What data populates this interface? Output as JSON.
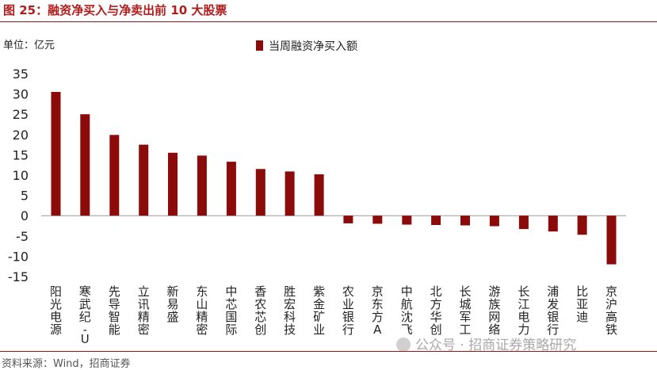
{
  "header": {
    "title": "图 25：融资净买入与净卖出前 10 大股票"
  },
  "unit_label": "单位：亿元",
  "footer": {
    "source": "资料来源：Wind，招商证券"
  },
  "watermark": {
    "text": "公众号 · 招商证券策略研究"
  },
  "colors": {
    "bar": "#8b0a0a",
    "title": "#b01c1c",
    "rule": "#8a1a1a"
  },
  "chart_data": {
    "type": "bar",
    "categories": [
      "阳光电源",
      "寒武纪-U",
      "先导智能",
      "立讯精密",
      "新易盛",
      "东山精密",
      "中芯国际",
      "香农芯创",
      "胜宏科技",
      "紫金矿业",
      "农业银行",
      "京东方A",
      "中航沈飞",
      "北方华创",
      "长城军工",
      "游族网络",
      "长江电力",
      "浦发银行",
      "比亚迪",
      "京沪高铁"
    ],
    "series": [
      {
        "name": "当周融资净买入额",
        "values": [
          30.5,
          25.0,
          19.9,
          17.5,
          15.5,
          14.8,
          13.3,
          11.5,
          10.9,
          10.2,
          -1.9,
          -2.0,
          -2.2,
          -2.3,
          -2.4,
          -2.6,
          -3.3,
          -3.9,
          -4.7,
          -12.0
        ]
      }
    ],
    "ylim": [
      -15,
      35
    ],
    "yticks": [
      -15,
      -10,
      -5,
      0,
      5,
      10,
      15,
      20,
      25,
      30,
      35
    ],
    "legend_position": "top-center",
    "grid": false
  }
}
